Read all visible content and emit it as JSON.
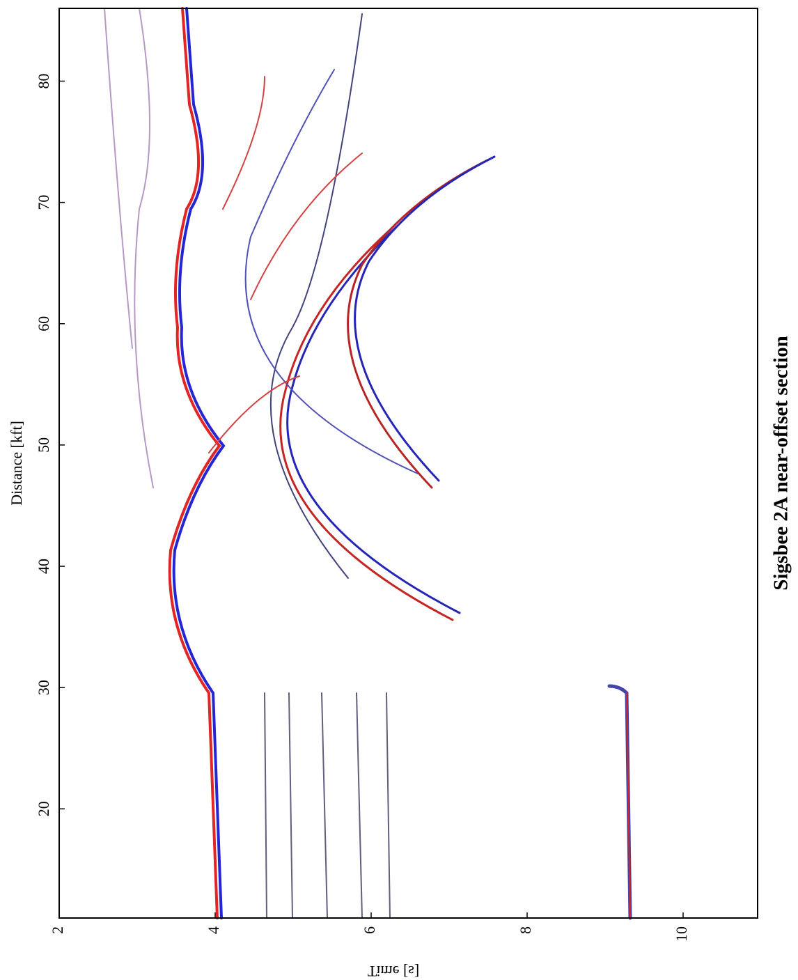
{
  "chart_data": {
    "type": "image",
    "title": "Sigsbee 2A near-offset section",
    "x_label": "Time [s]",
    "y_label": "Distance [kft]",
    "xlim": [
      2,
      11
    ],
    "xticks": [
      2,
      4,
      6,
      8,
      10
    ],
    "ylim": [
      11,
      86
    ],
    "yticks": [
      20,
      30,
      40,
      50,
      60,
      70,
      80
    ]
  }
}
